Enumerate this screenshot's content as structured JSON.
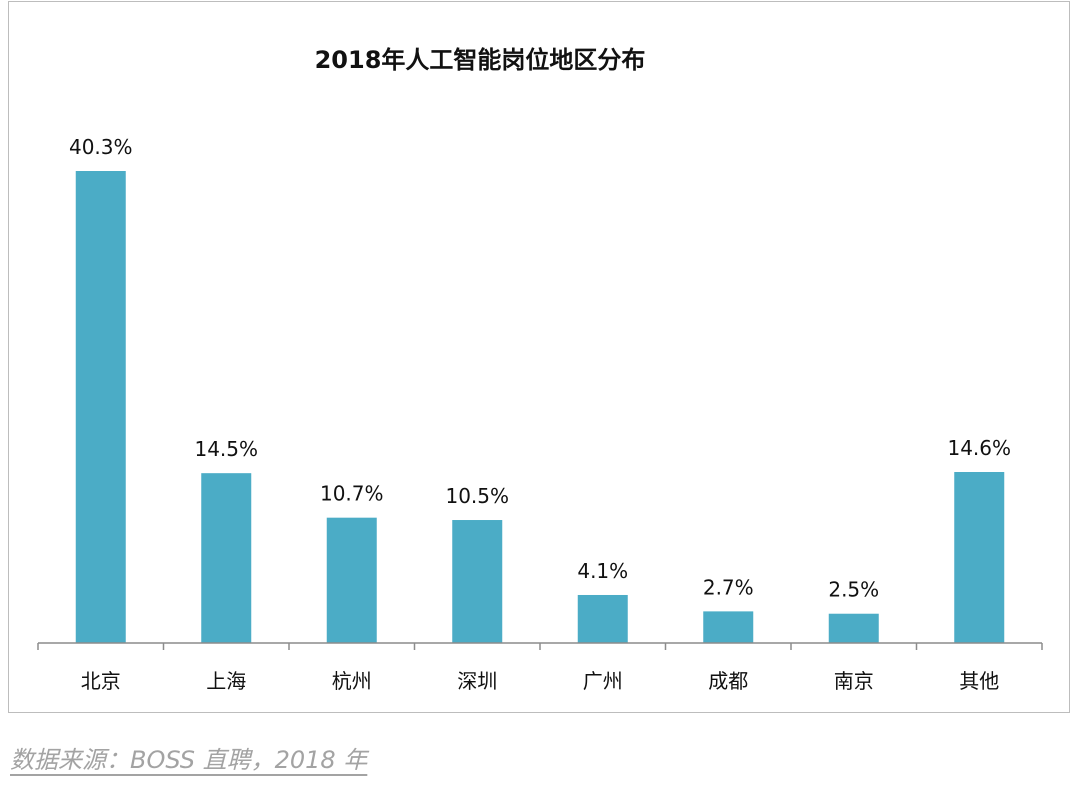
{
  "chart_data": {
    "type": "bar",
    "title": "2018年人工智能岗位地区分布",
    "xlabel": "",
    "ylabel": "",
    "categories": [
      "北京",
      "上海",
      "杭州",
      "深圳",
      "广州",
      "成都",
      "南京",
      "其他"
    ],
    "values": [
      40.3,
      14.5,
      10.7,
      10.5,
      4.1,
      2.7,
      2.5,
      14.6
    ],
    "data_labels": [
      "40.3%",
      "14.5%",
      "10.7%",
      "10.5%",
      "4.1%",
      "2.7%",
      "2.5%",
      "14.6%"
    ],
    "ylim": [
      0,
      40.3
    ],
    "grid": false,
    "legend": "none",
    "bar_color": "#4BACC6"
  },
  "source_note": "数据来源：BOSS 直聘，2018 年"
}
